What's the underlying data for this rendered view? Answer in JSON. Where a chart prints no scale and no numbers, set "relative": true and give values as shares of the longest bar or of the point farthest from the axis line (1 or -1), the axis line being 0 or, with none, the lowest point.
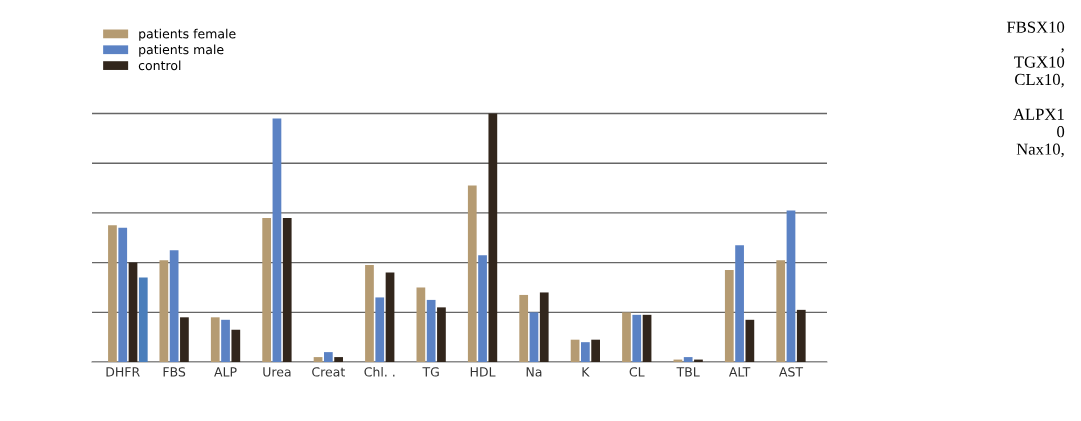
{
  "chart_data": {
    "type": "bar",
    "relative": true,
    "grid": "y",
    "legend": "top left",
    "categories": [
      "DHFR",
      "FBS",
      "ALP",
      "Urea",
      "Creat",
      "Chl. .",
      "TG",
      "HDL",
      "Na",
      "K",
      "CL",
      "TBL",
      "ALT",
      "AST"
    ],
    "series": [
      {
        "name": "patients female",
        "color": "#b59b72",
        "values": [
          0.55,
          0.41,
          0.18,
          0.58,
          0.02,
          0.39,
          0.3,
          0.71,
          0.27,
          0.09,
          0.2,
          0.01,
          0.37,
          0.41
        ]
      },
      {
        "name": "patients male",
        "color": "#5b82c4",
        "values": [
          0.54,
          0.45,
          0.17,
          0.98,
          0.04,
          0.26,
          0.25,
          0.43,
          0.2,
          0.08,
          0.19,
          0.02,
          0.47,
          0.61
        ]
      },
      {
        "name": "control",
        "color": "#32261c",
        "values": [
          0.4,
          0.18,
          0.13,
          0.58,
          0.02,
          0.36,
          0.22,
          1,
          0.28,
          0.09,
          0.19,
          0.01,
          0.17,
          0.21
        ]
      },
      {
        "color": "#4a7ebb",
        "values": [
          0.34,
          null,
          null,
          null,
          null,
          null,
          null,
          null,
          null,
          null,
          null,
          null,
          null,
          null
        ]
      }
    ],
    "annotations": [
      "FBSX10\n,\nTGX10\nCLx10,\n\nALPX1\n0\nNax10,"
    ]
  }
}
